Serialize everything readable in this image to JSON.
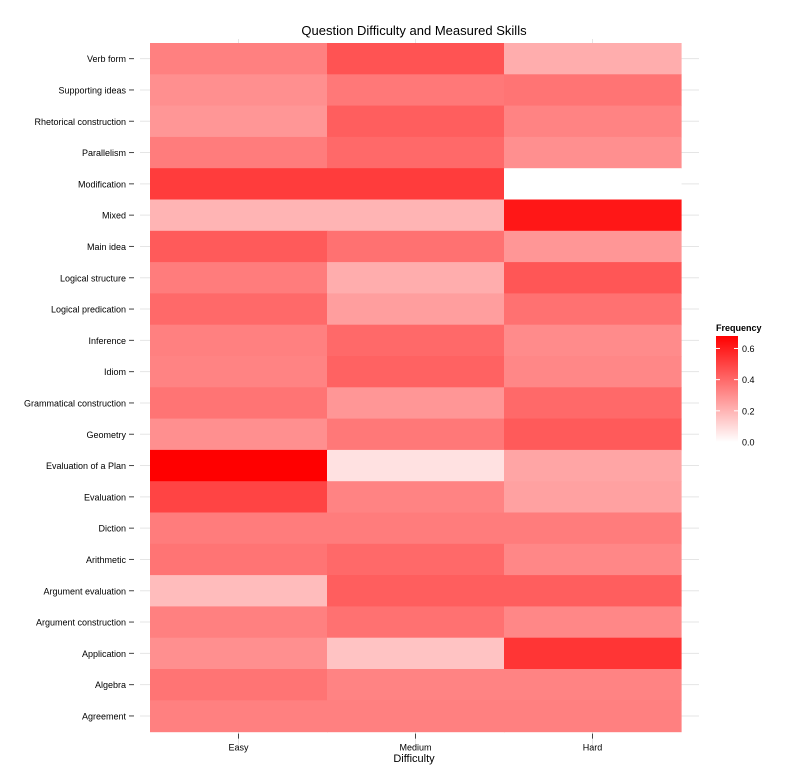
{
  "chart_data": {
    "type": "heatmap",
    "title": "Question Difficulty and Measured Skills",
    "xlabel": "Difficulty",
    "ylabel": "",
    "x_categories": [
      "Easy",
      "Medium",
      "Hard"
    ],
    "y_categories": [
      "Verb form",
      "Supporting ideas",
      "Rhetorical construction",
      "Parallelism",
      "Modification",
      "Mixed",
      "Main idea",
      "Logical structure",
      "Logical predication",
      "Inference",
      "Idiom",
      "Grammatical construction",
      "Geometry",
      "Evaluation of a Plan",
      "Evaluation",
      "Diction",
      "Arithmetic",
      "Argument evaluation",
      "Argument construction",
      "Application",
      "Algebra",
      "Agreement"
    ],
    "values": [
      [
        0.34,
        0.46,
        0.22
      ],
      [
        0.3,
        0.36,
        0.37
      ],
      [
        0.28,
        0.43,
        0.33
      ],
      [
        0.35,
        0.4,
        0.3
      ],
      [
        0.52,
        0.52,
        null
      ],
      [
        0.2,
        0.2,
        0.62
      ],
      [
        0.44,
        0.38,
        0.28
      ],
      [
        0.35,
        0.22,
        0.45
      ],
      [
        0.4,
        0.26,
        0.38
      ],
      [
        0.34,
        0.4,
        0.31
      ],
      [
        0.33,
        0.42,
        0.32
      ],
      [
        0.37,
        0.28,
        0.4
      ],
      [
        0.3,
        0.36,
        0.44
      ],
      [
        0.68,
        0.08,
        0.24
      ],
      [
        0.5,
        0.33,
        0.25
      ],
      [
        0.35,
        0.35,
        0.35
      ],
      [
        0.37,
        0.4,
        0.32
      ],
      [
        0.18,
        0.43,
        0.43
      ],
      [
        0.34,
        0.38,
        0.32
      ],
      [
        0.3,
        0.16,
        0.54
      ],
      [
        0.37,
        0.33,
        0.33
      ],
      [
        0.34,
        0.34,
        0.34
      ]
    ],
    "color_scale": {
      "low": "#ffffff",
      "high": "#ff0000",
      "min": 0,
      "max": 0.68,
      "na_color": "#ffffff"
    },
    "legend": {
      "title": "Frequency",
      "ticks": [
        0.0,
        0.2,
        0.4,
        0.6
      ],
      "tick_labels": [
        "0.0",
        "0.2",
        "0.4",
        "0.6"
      ],
      "placement": "right"
    },
    "grid": true
  }
}
